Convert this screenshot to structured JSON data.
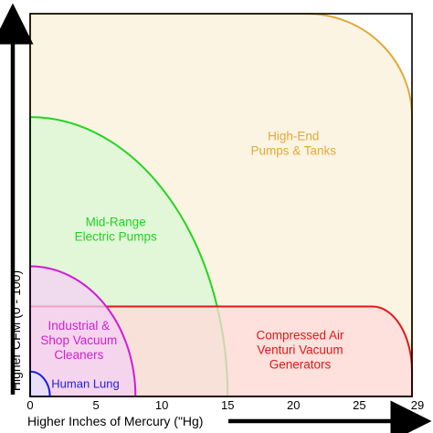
{
  "chart_data": {
    "type": "area",
    "xlabel": "Higher Inches of Mercury (\"Hg)",
    "ylabel": "Higher CFM (0 - 100)",
    "xlim": [
      0,
      29
    ],
    "ylim": [
      0,
      100
    ],
    "x_ticks": [
      "0",
      "5",
      "10",
      "15",
      "20",
      "25",
      "29"
    ],
    "grid": false,
    "regions": [
      {
        "label_lines": [
          "High-End",
          "Pumps & Tanks"
        ],
        "x_max": 29,
        "y_max": 100,
        "corner_radius": [
          8,
          27
        ],
        "fill": "#fbf0d8",
        "stroke": "#e0a93a",
        "text_color": "#e0a93a",
        "label_at": [
          20,
          66
        ]
      },
      {
        "label_lines": [
          "Mid-Range",
          "Electric Pumps"
        ],
        "x_max": 15,
        "y_max": 73,
        "corner_radius": [
          15,
          73
        ],
        "fill": "#d8f8d4",
        "stroke": "#22d422",
        "text_color": "#22d422",
        "label_at": [
          6.5,
          43.5
        ]
      },
      {
        "label_lines": [
          "Compressed Air",
          "Venturi Vacuum",
          "Generators"
        ],
        "x_max": 29,
        "y_max": 23.5,
        "corner_radius": [
          3,
          17
        ],
        "fill": "#ffdada",
        "stroke": "#e01818",
        "text_color": "#e01818",
        "label_at": [
          20.5,
          12
        ]
      },
      {
        "label_lines": [
          "Industrial &",
          "Shop Vacuum",
          "Cleaners"
        ],
        "x_max": 8,
        "y_max": 34,
        "corner_radius": [
          8,
          34
        ],
        "fill": "#f4d0f4",
        "stroke": "#d21cd2",
        "text_color": "#d21cd2",
        "label_at": [
          3.7,
          14.5
        ]
      },
      {
        "label_lines": [
          "Human Lung"
        ],
        "x_max": 1.5,
        "y_max": 6.5,
        "corner_radius": [
          1.5,
          6.5
        ],
        "fill": "#e3e3ff",
        "stroke": "#2020e0",
        "text_color": "#2020e0",
        "label_at": [
          4.2,
          3.2
        ]
      }
    ]
  }
}
